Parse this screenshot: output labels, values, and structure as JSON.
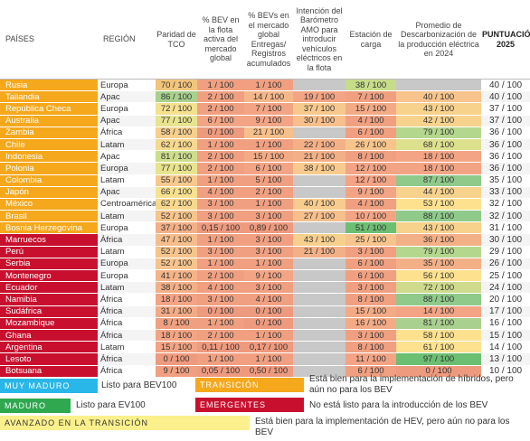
{
  "chart_data": {
    "type": "table",
    "columns": [
      "PAÍSES",
      "REGIÓN",
      "Paridad de TCO",
      "% BEV en la flota activa del mercado global",
      "% BEVs en el mercado global Entregas/ Registros acumulados",
      "Intención del Barómetro AMO para introducir vehículos eléctricos en la flota",
      "Estación de carga",
      "Promedio de Descarbonización de la producción eléctrica en 2024",
      "",
      "PUNTUACIÓN 2025"
    ],
    "rows": [
      {
        "country": "Rusia",
        "region": "Europa",
        "tco": "70 / 100",
        "bev_fleet": "1 / 100",
        "bev_market": "1 / 100",
        "amo": "",
        "charging": "38 / 100",
        "decarb": "",
        "score": "40 / 100",
        "group": "transition",
        "c": [
          "#f2c57c",
          "#f0a080",
          "#f0a080",
          "#c8c8c8",
          "#c6dc8a",
          "#c8c8c8"
        ]
      },
      {
        "country": "Tailandia",
        "region": "Apac",
        "tco": "86 / 100",
        "bev_fleet": "2 / 100",
        "bev_market": "14 / 100",
        "amo": "19 / 100",
        "charging": "7 / 100",
        "decarb": "40 / 100",
        "score": "40 / 100",
        "group": "transition",
        "c": [
          "#a9d08e",
          "#f0a080",
          "#f5b78a",
          "#f2a484",
          "#f0a080",
          "#f6c48c"
        ]
      },
      {
        "country": "República Checa",
        "region": "Europa",
        "tco": "72 / 100",
        "bev_fleet": "2 / 100",
        "bev_market": "7 / 100",
        "amo": "37 / 100",
        "charging": "15 / 100",
        "decarb": "43 / 100",
        "score": "37 / 100",
        "group": "transition",
        "c": [
          "#f5e08e",
          "#f0a080",
          "#f2a484",
          "#f8c98d",
          "#f3ab86",
          "#f7d28d"
        ]
      },
      {
        "country": "Australia",
        "region": "Apac",
        "tco": "77 / 100",
        "bev_fleet": "6 / 100",
        "bev_market": "9 / 100",
        "amo": "30 / 100",
        "charging": "4 / 100",
        "decarb": "42 / 100",
        "score": "37 / 100",
        "group": "transition",
        "c": [
          "#e8e38e",
          "#f2a484",
          "#f2a484",
          "#f6bf8b",
          "#f0a080",
          "#f7d28d"
        ]
      },
      {
        "country": "Zambia",
        "region": "África",
        "tco": "58 / 100",
        "bev_fleet": "0 / 100",
        "bev_market": "21 / 100",
        "amo": "",
        "charging": "6 / 100",
        "decarb": "79 / 100",
        "score": "36 / 100",
        "group": "transition",
        "c": [
          "#f7cf8d",
          "#ee9a7e",
          "#f6bf8b",
          "#c8c8c8",
          "#f0a080",
          "#b4d78e"
        ]
      },
      {
        "country": "Chile",
        "region": "Latam",
        "tco": "62 / 100",
        "bev_fleet": "1 / 100",
        "bev_market": "1 / 100",
        "amo": "22 / 100",
        "charging": "26 / 100",
        "decarb": "68 / 100",
        "score": "36 / 100",
        "group": "transition",
        "c": [
          "#f8d88e",
          "#f0a080",
          "#f0a080",
          "#f3b087",
          "#f7c48c",
          "#dde08d"
        ]
      },
      {
        "country": "Indonesia",
        "region": "Apac",
        "tco": "81 / 100",
        "bev_fleet": "2 / 100",
        "bev_market": "15 / 100",
        "amo": "21 / 100",
        "charging": "8 / 100",
        "decarb": "18 / 100",
        "score": "36 / 100",
        "group": "transition",
        "c": [
          "#cddd8c",
          "#f0a080",
          "#f3ab86",
          "#f3b087",
          "#f0a080",
          "#f2a484"
        ]
      },
      {
        "country": "Polonia",
        "region": "Europa",
        "tco": "77 / 100",
        "bev_fleet": "2 / 100",
        "bev_market": "6 / 100",
        "amo": "38 / 100",
        "charging": "12 / 100",
        "decarb": "18 / 100",
        "score": "36 / 100",
        "group": "transition",
        "c": [
          "#e8e38e",
          "#f0a080",
          "#f2a484",
          "#f8ca8d",
          "#f2a484",
          "#f2a484"
        ]
      },
      {
        "country": "Colombia",
        "region": "Latam",
        "tco": "55 / 100",
        "bev_fleet": "1 / 100",
        "bev_market": "5 / 100",
        "amo": "",
        "charging": "12 / 100",
        "decarb": "87 / 100",
        "score": "35 / 100",
        "group": "transition",
        "c": [
          "#f7c98d",
          "#f0a080",
          "#f0a080",
          "#c8c8c8",
          "#f2a484",
          "#8fca8a"
        ]
      },
      {
        "country": "Japón",
        "region": "Apac",
        "tco": "66 / 100",
        "bev_fleet": "4 / 100",
        "bev_market": "2 / 100",
        "amo": "",
        "charging": "9 / 100",
        "decarb": "44 / 100",
        "score": "33 / 100",
        "group": "transition",
        "c": [
          "#f9e18f",
          "#f0a080",
          "#f0a080",
          "#c8c8c8",
          "#f2a484",
          "#f7d28d"
        ]
      },
      {
        "country": "México",
        "region": "Centroamérica",
        "tco": "62 / 100",
        "bev_fleet": "3 / 100",
        "bev_market": "1 / 100",
        "amo": "40 / 100",
        "charging": "4 / 100",
        "decarb": "53 / 100",
        "score": "32 / 100",
        "group": "transition",
        "c": [
          "#f8d88e",
          "#f0a080",
          "#f0a080",
          "#f8cc8d",
          "#f0a080",
          "#fde18f"
        ]
      },
      {
        "country": "Brasil",
        "region": "Latam",
        "tco": "52 / 100",
        "bev_fleet": "3 / 100",
        "bev_market": "3 / 100",
        "amo": "27 / 100",
        "charging": "10 / 100",
        "decarb": "88 / 100",
        "score": "32 / 100",
        "group": "transition",
        "c": [
          "#f6c48c",
          "#f0a080",
          "#f0a080",
          "#f6bf8b",
          "#f2a484",
          "#8fca8a"
        ]
      },
      {
        "country": "Bosnia Herzegovina",
        "region": "Europa",
        "tco": "37 / 100",
        "bev_fleet": "0,15 / 100",
        "bev_market": "0,89 / 100",
        "amo": "",
        "charging": "51 / 100",
        "decarb": "43 / 100",
        "score": "31 / 100",
        "group": "transition",
        "c": [
          "#f3b087",
          "#ee9a7e",
          "#ee9a7e",
          "#c8c8c8",
          "#6cbf72",
          "#f7d28d"
        ]
      },
      {
        "country": "Marruecos",
        "region": "África",
        "tco": "47 / 100",
        "bev_fleet": "1 / 100",
        "bev_market": "3 / 100",
        "amo": "43 / 100",
        "charging": "25 / 100",
        "decarb": "36 / 100",
        "score": "30 / 100",
        "group": "emerging",
        "c": [
          "#f5bd8b",
          "#f0a080",
          "#f0a080",
          "#f8d08d",
          "#f6c48c",
          "#f3b087"
        ]
      },
      {
        "country": "Perú",
        "region": "Latam",
        "tco": "52 / 100",
        "bev_fleet": "3 / 100",
        "bev_market": "3 / 100",
        "amo": "21 / 100",
        "charging": "3 / 100",
        "decarb": "79 / 100",
        "score": "29 / 100",
        "group": "emerging",
        "c": [
          "#f6c48c",
          "#f0a080",
          "#f0a080",
          "#f3b087",
          "#f0a080",
          "#b4d78e"
        ]
      },
      {
        "country": "Serbia",
        "region": "Europa",
        "tco": "52 / 100",
        "bev_fleet": "1 / 100",
        "bev_market": "1 / 100",
        "amo": "",
        "charging": "6 / 100",
        "decarb": "35 / 100",
        "score": "26 / 100",
        "group": "emerging",
        "c": [
          "#f6c48c",
          "#f0a080",
          "#f0a080",
          "#c8c8c8",
          "#f0a080",
          "#f3b087"
        ]
      },
      {
        "country": "Montenegro",
        "region": "Europa",
        "tco": "41 / 100",
        "bev_fleet": "2 / 100",
        "bev_market": "9 / 100",
        "amo": "",
        "charging": "6 / 100",
        "decarb": "56 / 100",
        "score": "25 / 100",
        "group": "emerging",
        "c": [
          "#f4b488",
          "#f0a080",
          "#f2a484",
          "#c8c8c8",
          "#f0a080",
          "#fde18f"
        ]
      },
      {
        "country": "Ecuador",
        "region": "Latam",
        "tco": "38 / 100",
        "bev_fleet": "4 / 100",
        "bev_market": "3 / 100",
        "amo": "",
        "charging": "3 / 100",
        "decarb": "72 / 100",
        "score": "24 / 100",
        "group": "emerging",
        "c": [
          "#f3b087",
          "#f0a080",
          "#f0a080",
          "#c8c8c8",
          "#f0a080",
          "#cfdb8c"
        ]
      },
      {
        "country": "Namibia",
        "region": "África",
        "tco": "18 / 100",
        "bev_fleet": "3 / 100",
        "bev_market": "4 / 100",
        "amo": "",
        "charging": "8 / 100",
        "decarb": "88 / 100",
        "score": "20 / 100",
        "group": "emerging",
        "c": [
          "#f2a484",
          "#f0a080",
          "#f0a080",
          "#c8c8c8",
          "#f0a080",
          "#8fca8a"
        ]
      },
      {
        "country": "Sudáfrica",
        "region": "África",
        "tco": "31 / 100",
        "bev_fleet": "0 / 100",
        "bev_market": "0 / 100",
        "amo": "",
        "charging": "15 / 100",
        "decarb": "14 / 100",
        "score": "17 / 100",
        "group": "emerging",
        "c": [
          "#f3ab86",
          "#ee9a7e",
          "#ee9a7e",
          "#c8c8c8",
          "#f3ab86",
          "#f2a484"
        ]
      },
      {
        "country": "Mozambique",
        "region": "África",
        "tco": "8 / 100",
        "bev_fleet": "1 / 100",
        "bev_market": "0 / 100",
        "amo": "",
        "charging": "16 / 100",
        "decarb": "81 / 100",
        "score": "16 / 100",
        "group": "emerging",
        "c": [
          "#f0a080",
          "#f0a080",
          "#ee9a7e",
          "#c8c8c8",
          "#f3ab86",
          "#a9d08e"
        ]
      },
      {
        "country": "Ghana",
        "region": "África",
        "tco": "18 / 100",
        "bev_fleet": "2 / 100",
        "bev_market": "1 / 100",
        "amo": "",
        "charging": "3 / 100",
        "decarb": "58 / 100",
        "score": "15 / 100",
        "group": "emerging",
        "c": [
          "#f2a484",
          "#f0a080",
          "#f0a080",
          "#c8c8c8",
          "#f0a080",
          "#fde18f"
        ]
      },
      {
        "country": "Argentina",
        "region": "Latam",
        "tco": "15 / 100",
        "bev_fleet": "0,11 / 100",
        "bev_market": "0,17 / 100",
        "amo": "",
        "charging": "8 / 100",
        "decarb": "61 / 100",
        "score": "14 / 100",
        "group": "emerging",
        "c": [
          "#f2a484",
          "#ee9a7e",
          "#ee9a7e",
          "#c8c8c8",
          "#f0a080",
          "#fde18f"
        ]
      },
      {
        "country": "Lesoto",
        "region": "África",
        "tco": "0 / 100",
        "bev_fleet": "1 / 100",
        "bev_market": "1 / 100",
        "amo": "",
        "charging": "11 / 100",
        "decarb": "97 / 100",
        "score": "13 / 100",
        "group": "emerging",
        "c": [
          "#ee9a7e",
          "#f0a080",
          "#f0a080",
          "#c8c8c8",
          "#f2a484",
          "#6cbf72"
        ]
      },
      {
        "country": "Botsuana",
        "region": "África",
        "tco": "9 / 100",
        "bev_fleet": "0,05 / 100",
        "bev_market": "0,50 / 100",
        "amo": "",
        "charging": "6 / 100",
        "decarb": "0 / 100",
        "score": "10 / 100",
        "group": "emerging",
        "c": [
          "#f0a080",
          "#ee9a7e",
          "#ee9a7e",
          "#c8c8c8",
          "#f0a080",
          "#ee9a7e"
        ]
      }
    ]
  },
  "header": {
    "paises": "PAÍSES",
    "region": "REGIÓN",
    "tco": "Paridad de TCO",
    "bev_fleet": "% BEV en la flota activa del mercado global",
    "bev_market": "% BEVs en el mercado global Entregas/ Registros acumulados",
    "amo": "Intención del Barómetro AMO para introducir vehículos eléctricos en la flota",
    "charging": "Estación de carga",
    "decarb": "Promedio de Descarbonización de la producción eléctrica en 2024",
    "score": "PUNTUACIÓN 2025"
  },
  "groups": {
    "transition": "#f5a81c",
    "emerging": "#c8102e"
  },
  "legend": {
    "very_mature": {
      "label": "Muy maduro",
      "desc": "Listo para BEV100",
      "color": "#29b6e8"
    },
    "mature": {
      "label": "Maduro",
      "desc": "Listo para EV100",
      "color": "#2fa84f"
    },
    "advanced": {
      "label": "Avanzado en la transición",
      "desc": "Está bien para la implementación de HEV, pero aún no para los BEV",
      "color": "#fbf08c"
    },
    "transition": {
      "label": "Transición",
      "desc": "Está bien para la implementación de híbridos, pero aún no para los BEV",
      "color": "#f5a81c"
    },
    "emerging": {
      "label": "Emergentes",
      "desc": "No está listo para la introducción de los BEV",
      "color": "#c8102e"
    }
  }
}
